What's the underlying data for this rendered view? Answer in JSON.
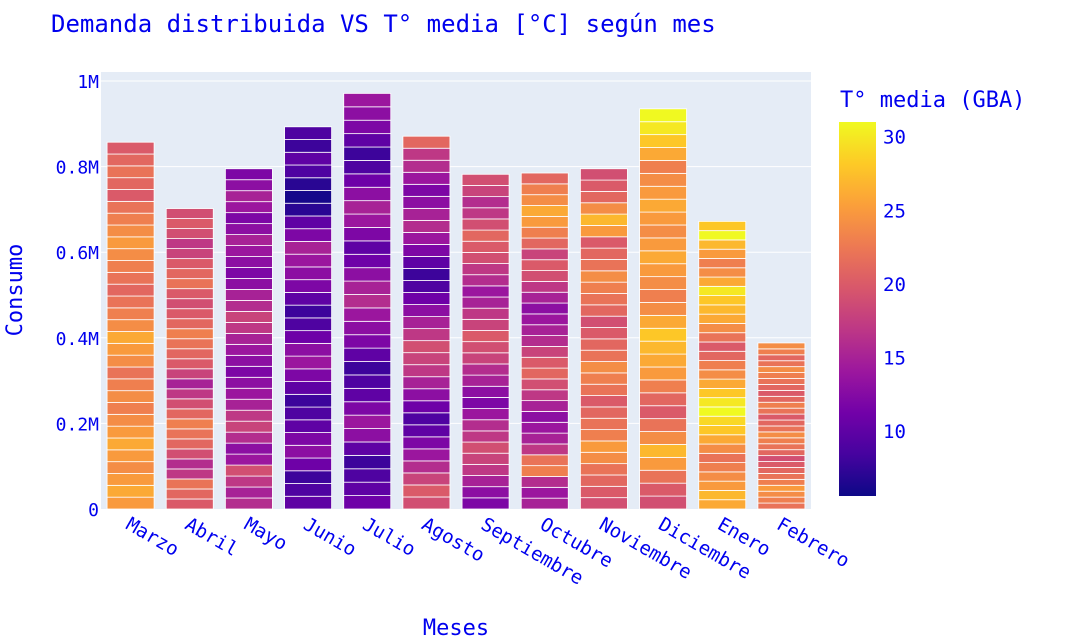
{
  "chart_data": {
    "type": "bar",
    "title": "Demanda distribuida VS T° media [°C] según mes",
    "xlabel": "Meses",
    "ylabel": "Consumo",
    "colorbar_title": "T° media (GBA)",
    "ylim": [
      0,
      1000000
    ],
    "yticks": [
      {
        "value": 0,
        "label": "0"
      },
      {
        "value": 200000,
        "label": "0.2M"
      },
      {
        "value": 400000,
        "label": "0.4M"
      },
      {
        "value": 600000,
        "label": "0.6M"
      },
      {
        "value": 800000,
        "label": "0.8M"
      },
      {
        "value": 1000000,
        "label": "1M"
      }
    ],
    "color_range": [
      5.6,
      31
    ],
    "colorbar_ticks": [
      10,
      15,
      20,
      25,
      30
    ],
    "colorscale": [
      "#0d0887",
      "#46039f",
      "#7201a8",
      "#9c179e",
      "#bd3786",
      "#d8576b",
      "#ed7953",
      "#fb9f3a",
      "#fdca26",
      "#f0f921"
    ],
    "plot_background": "#e5ecf6",
    "text_color": "#0000ee",
    "grid": true,
    "categories": [
      "Marzo",
      "Abril",
      "Mayo",
      "Junio",
      "Julio",
      "Agosto",
      "Septiembre",
      "Octubre",
      "Noviembre",
      "Diciembre",
      "Enero",
      "Febrero"
    ],
    "values": [
      857000,
      702000,
      795000,
      893000,
      971000,
      871000,
      782000,
      785000,
      795000,
      935000,
      672000,
      388000
    ],
    "segments_per_bar": [
      31,
      30,
      31,
      30,
      31,
      31,
      30,
      31,
      30,
      31,
      31,
      28
    ],
    "segment_temperatures": [
      [
        25,
        26,
        25,
        24,
        25,
        26,
        25,
        24,
        23,
        24,
        23,
        22,
        24,
        25,
        26,
        24,
        23,
        22,
        21,
        22,
        23,
        24,
        25,
        24,
        23,
        22,
        20,
        21,
        22,
        21,
        20
      ],
      [
        20,
        21,
        22,
        17,
        16,
        19,
        21,
        22,
        23,
        21,
        19,
        17,
        15,
        18,
        20,
        21,
        22,
        23,
        21,
        20,
        19,
        20,
        22,
        21,
        20,
        18,
        17,
        19,
        20,
        19
      ],
      [
        16,
        15,
        17,
        19,
        14,
        13,
        16,
        18,
        17,
        15,
        14,
        13,
        12,
        13,
        14,
        15,
        17,
        18,
        16,
        15,
        13,
        12,
        13,
        14,
        15,
        13,
        12,
        14,
        15,
        13,
        12
      ],
      [
        10,
        9,
        8,
        11,
        13,
        12,
        10,
        9,
        8,
        10,
        12,
        14,
        13,
        11,
        9,
        8,
        10,
        12,
        13,
        14,
        15,
        12,
        10,
        7,
        6,
        7,
        9,
        10,
        8,
        9
      ],
      [
        11,
        10,
        9,
        8,
        10,
        13,
        14,
        12,
        10,
        9,
        8,
        10,
        12,
        13,
        14,
        16,
        15,
        13,
        11,
        10,
        12,
        14,
        15,
        13,
        11,
        9,
        8,
        10,
        12,
        13,
        14
      ],
      [
        19,
        20,
        18,
        16,
        14,
        12,
        10,
        9,
        11,
        13,
        15,
        17,
        18,
        19,
        17,
        15,
        13,
        11,
        9,
        8,
        10,
        12,
        14,
        16,
        15,
        13,
        12,
        14,
        16,
        17,
        21
      ],
      [
        12,
        13,
        15,
        17,
        18,
        19,
        17,
        16,
        14,
        12,
        13,
        15,
        16,
        18,
        19,
        20,
        18,
        17,
        15,
        14,
        16,
        17,
        19,
        20,
        21,
        19,
        17,
        16,
        18,
        19
      ],
      [
        15,
        14,
        16,
        23,
        22,
        17,
        15,
        14,
        13,
        15,
        17,
        19,
        21,
        20,
        18,
        16,
        15,
        14,
        13,
        15,
        17,
        19,
        20,
        18,
        21,
        23,
        25,
        26,
        24,
        23,
        21
      ],
      [
        19,
        20,
        21,
        22,
        24,
        25,
        23,
        22,
        21,
        20,
        22,
        23,
        24,
        22,
        21,
        20,
        19,
        21,
        22,
        23,
        24,
        22,
        21,
        20,
        25,
        27,
        24,
        21,
        20,
        19
      ],
      [
        19,
        20,
        22,
        25,
        27,
        24,
        22,
        20,
        21,
        23,
        25,
        26,
        27,
        28,
        26,
        24,
        23,
        24,
        25,
        26,
        25,
        24,
        25,
        26,
        25,
        24,
        23,
        26,
        28,
        30,
        31
      ],
      [
        26,
        27,
        25,
        24,
        23,
        22,
        24,
        26,
        28,
        29,
        31,
        30,
        28,
        26,
        24,
        23,
        21,
        20,
        22,
        24,
        26,
        27,
        28,
        30,
        26,
        24,
        23,
        25,
        27,
        31,
        28
      ],
      [
        22,
        23,
        24,
        25,
        23,
        22,
        21,
        20,
        19,
        21,
        22,
        23,
        24,
        22,
        21,
        20,
        22,
        23,
        21,
        20,
        21,
        22,
        23,
        24,
        22,
        21,
        23,
        24
      ]
    ]
  }
}
